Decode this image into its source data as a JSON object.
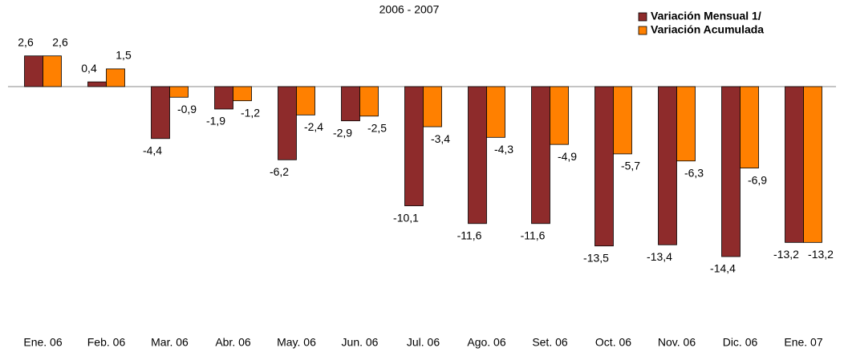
{
  "chart_data": {
    "type": "bar",
    "title": "2006 - 2007",
    "categories": [
      "Ene. 06",
      "Feb. 06",
      "Mar. 06",
      "Abr. 06",
      "May. 06",
      "Jun. 06",
      "Jul. 06",
      "Ago. 06",
      "Set. 06",
      "Oct. 06",
      "Nov. 06",
      "Dic. 06",
      "Ene. 07"
    ],
    "series": [
      {
        "name": "Variación Mensual 1/",
        "color": "#8e2b2b",
        "values": [
          2.6,
          0.4,
          -4.4,
          -1.9,
          -6.2,
          -2.9,
          -10.1,
          -11.6,
          -11.6,
          -13.5,
          -13.4,
          -14.4,
          -13.2
        ],
        "value_labels": [
          "2,6",
          "0,4",
          "-4,4",
          "-1,9",
          "-6,2",
          "-2,9",
          "-10,1",
          "-11,6",
          "-11,6",
          "-13,5",
          "-13,4",
          "-14,4",
          "-13,2"
        ]
      },
      {
        "name": "Variación Acumulada",
        "color": "#ff8000",
        "values": [
          2.6,
          1.5,
          -0.9,
          -1.2,
          -2.4,
          -2.5,
          -3.4,
          -4.3,
          -4.9,
          -5.7,
          -6.3,
          -6.9,
          -13.2
        ],
        "value_labels": [
          "2,6",
          "1,5",
          "-0,9",
          "-1,2",
          "-2,4",
          "-2,5",
          "-3,4",
          "-4,3",
          "-4,9",
          "-5,7",
          "-6,3",
          "-6,9",
          "-13,2"
        ]
      }
    ],
    "legend": "top-right"
  }
}
